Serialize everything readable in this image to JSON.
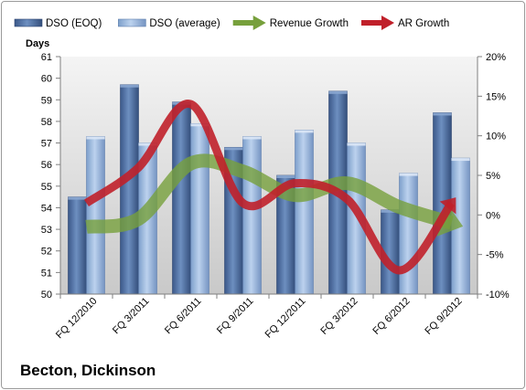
{
  "chart_data": {
    "type": "bar",
    "categories": [
      "FQ 12/2010",
      "FQ 3/2011",
      "FQ 6/2011",
      "FQ 9/2011",
      "FQ 12/2011",
      "FQ 3/2012",
      "FQ 6/2012",
      "FQ 9/2012"
    ],
    "series": [
      {
        "name": "DSO (EOQ)",
        "values": [
          54.5,
          59.7,
          58.9,
          56.8,
          55.5,
          59.4,
          53.9,
          58.4
        ],
        "color": "#4f6fa0",
        "axis": "left",
        "kind": "bar"
      },
      {
        "name": "DSO (average)",
        "values": [
          57.3,
          57.0,
          57.9,
          57.3,
          57.6,
          57.0,
          55.6,
          56.3
        ],
        "color": "#95b3d7",
        "axis": "left",
        "kind": "bar"
      },
      {
        "name": "Revenue Growth",
        "values": [
          -1.5,
          -0.5,
          6.5,
          5.5,
          2.5,
          4.0,
          1.0,
          -1.0
        ],
        "color": "#77a03c",
        "axis": "right",
        "kind": "arrow-line"
      },
      {
        "name": "AR Growth",
        "values": [
          1.5,
          6.0,
          14.0,
          1.5,
          4.0,
          2.0,
          -7.0,
          1.5
        ],
        "color": "#c0202a",
        "axis": "right",
        "kind": "arrow-line"
      }
    ],
    "ylabel": "Days",
    "ylim": [
      50,
      61
    ],
    "yticks": [
      "50",
      "51",
      "52",
      "53",
      "54",
      "55",
      "56",
      "57",
      "58",
      "59",
      "60",
      "61"
    ],
    "y2lim": [
      -10,
      20
    ],
    "y2ticks": [
      "-10%",
      "-5%",
      "0%",
      "5%",
      "10%",
      "15%",
      "20%"
    ],
    "legend_position": "top",
    "grid": false
  },
  "company": "Becton, Dickinson"
}
